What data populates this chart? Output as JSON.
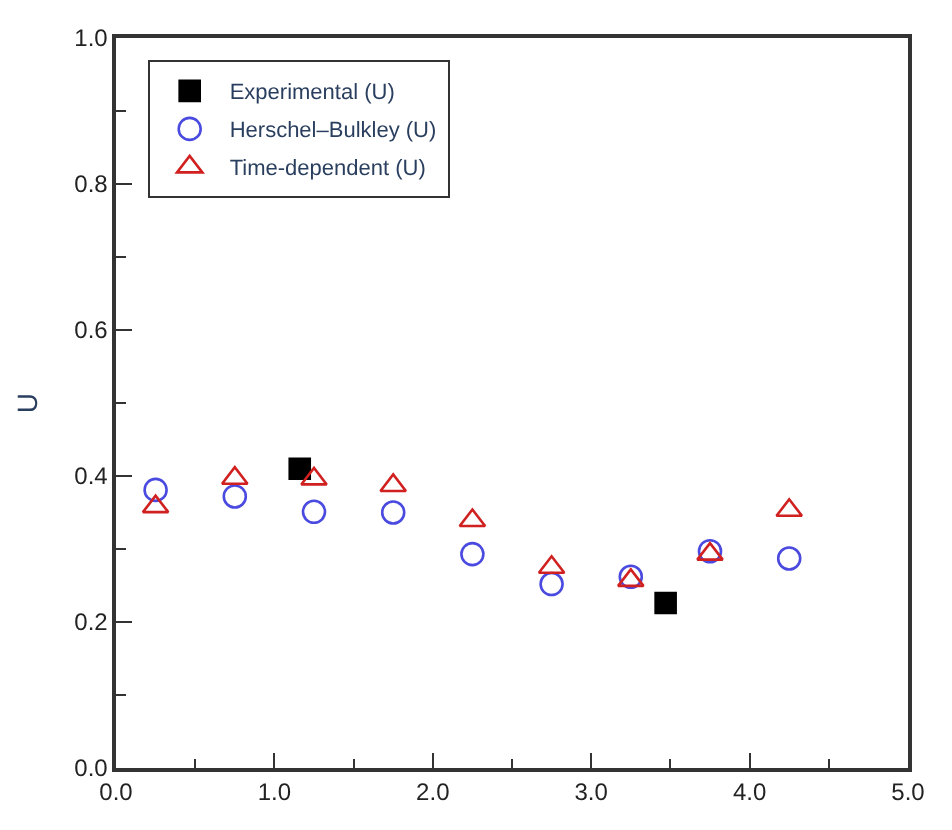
{
  "chart_data": {
    "type": "scatter",
    "ylabel": "U",
    "series": [
      {
        "name": "Experimental (U)",
        "color": "#000000",
        "marker": "square",
        "x": [
          1.16,
          3.47
        ],
        "values": [
          0.41,
          0.226
        ]
      },
      {
        "name": "Herschel–Bulkley (U)",
        "color": "#4a4ae0",
        "marker": "circle",
        "x": [
          0.25,
          0.75,
          1.25,
          1.75,
          2.25,
          2.75,
          3.25,
          3.75,
          4.25
        ],
        "values": [
          0.381,
          0.372,
          0.351,
          0.35,
          0.293,
          0.252,
          0.262,
          0.297,
          0.287
        ]
      },
      {
        "name": "Time-dependent (U)",
        "color": "#d02020",
        "marker": "triangle",
        "x": [
          0.25,
          0.75,
          1.25,
          1.75,
          2.25,
          2.75,
          3.25,
          3.75,
          4.25
        ],
        "values": [
          0.358,
          0.397,
          0.396,
          0.387,
          0.339,
          0.275,
          0.257,
          0.293,
          0.353
        ]
      }
    ],
    "xlim": [
      0,
      5
    ],
    "xticks": [
      {
        "value": 0,
        "label": "0.0"
      },
      {
        "value": 0.5,
        "label": null
      },
      {
        "value": 1,
        "label": "1.0"
      },
      {
        "value": 1.5,
        "label": null
      },
      {
        "value": 2,
        "label": "2.0"
      },
      {
        "value": 2.5,
        "label": null
      },
      {
        "value": 3,
        "label": "3.0"
      },
      {
        "value": 3.5,
        "label": null
      },
      {
        "value": 4,
        "label": "4.0"
      },
      {
        "value": 4.5,
        "label": null
      },
      {
        "value": 5,
        "label": "5.0"
      }
    ],
    "ylim": [
      0,
      1
    ],
    "yticks": [
      {
        "value": 0,
        "label": "0.0"
      },
      {
        "value": 0.1,
        "label": null
      },
      {
        "value": 0.2,
        "label": "0.2"
      },
      {
        "value": 0.3,
        "label": null
      },
      {
        "value": 0.4,
        "label": "0.4"
      },
      {
        "value": 0.5,
        "label": null
      },
      {
        "value": 0.6,
        "label": "0.6"
      },
      {
        "value": 0.7,
        "label": null
      },
      {
        "value": 0.8,
        "label": "0.8"
      },
      {
        "value": 0.9,
        "label": null
      },
      {
        "value": 1,
        "label": "1.0"
      }
    ],
    "legend": "top left"
  }
}
